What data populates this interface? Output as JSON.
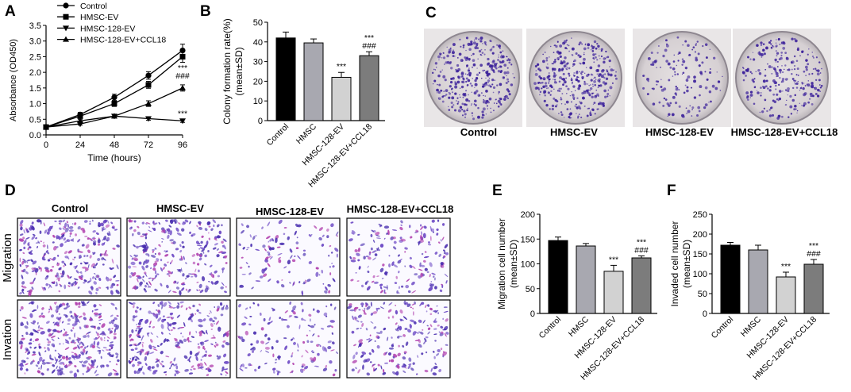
{
  "panel_letters": [
    "A",
    "B",
    "C",
    "D",
    "E",
    "F"
  ],
  "colors": {
    "black": "#000000",
    "gray_dark": "#7c7c7c",
    "gray_mid": "#a8a8b0",
    "gray_light": "#d2d2d2",
    "purple": "#3a1f9a",
    "plate_bg": "#d9d4d6"
  },
  "plate_labels": [
    "Control",
    "HMSC-EV",
    "HMSC-128-EV",
    "HMSC-128-EV+CCL18"
  ],
  "transwell_col_labels": [
    "Control",
    "HMSC-EV",
    "HMSC-128-EV",
    "HMSC-128-EV+CCL18"
  ],
  "transwell_row_labels": [
    "Migration",
    "Invation"
  ],
  "chart_data": [
    {
      "panel": "A",
      "type": "line",
      "xlabel": "Time (hours)",
      "ylabel": "Absorbance (OD450)",
      "x": [
        0,
        24,
        48,
        72,
        96
      ],
      "xlim": [
        0,
        96
      ],
      "ylim": [
        0,
        3.5
      ],
      "yticks": [
        "0.0",
        "0.5",
        "1.0",
        "1.5",
        "2.0",
        "2.5",
        "3.0",
        "3.5"
      ],
      "xticks": [
        "0",
        "24",
        "48",
        "72",
        "96"
      ],
      "grid": false,
      "legend": "top-left",
      "series": [
        {
          "name": "Control",
          "marker": "circle",
          "values": [
            0.25,
            0.65,
            1.2,
            1.9,
            2.7
          ],
          "err": [
            0.05,
            0.07,
            0.1,
            0.12,
            0.2
          ]
        },
        {
          "name": "HMSC-EV",
          "marker": "square",
          "values": [
            0.25,
            0.6,
            1.0,
            1.6,
            2.5
          ],
          "err": [
            0.05,
            0.06,
            0.09,
            0.11,
            0.18
          ]
        },
        {
          "name": "HMSC-128-EV",
          "marker": "triangle-down",
          "values": [
            0.25,
            0.35,
            0.6,
            0.52,
            0.45
          ],
          "err": [
            0.03,
            0.04,
            0.05,
            0.05,
            0.05
          ]
        },
        {
          "name": "HMSC-128-EV+CCL18",
          "marker": "triangle-up",
          "values": [
            0.25,
            0.45,
            0.6,
            1.0,
            1.5
          ],
          "err": [
            0.03,
            0.05,
            0.06,
            0.09,
            0.1
          ]
        }
      ],
      "annotations": [
        {
          "x": 96,
          "y": 1.5,
          "lines": [
            "***",
            "###"
          ]
        },
        {
          "x": 96,
          "y": 0.45,
          "lines": [
            "***"
          ]
        }
      ]
    },
    {
      "panel": "B",
      "type": "bar",
      "ylabel_lines": [
        "Colony formation rate(%)",
        "(mean±SD)"
      ],
      "categories": [
        "Control",
        "HMSC",
        "HMSC-128-EV",
        "HMSC-128-EV+CCL18"
      ],
      "values": [
        42,
        39.5,
        22,
        33
      ],
      "err": [
        3,
        2,
        2.5,
        2
      ],
      "ylim": [
        0,
        50
      ],
      "yticks": [
        "0",
        "10",
        "20",
        "30",
        "40",
        "50"
      ],
      "bar_colors": [
        "#000000",
        "#a8a8b0",
        "#d2d2d2",
        "#7c7c7c"
      ],
      "annotations": [
        null,
        null,
        [
          "***"
        ],
        [
          "***",
          "###"
        ]
      ]
    },
    {
      "panel": "E",
      "type": "bar",
      "ylabel_lines": [
        "Migration cell number",
        "(mean±SD)"
      ],
      "categories": [
        "Control",
        "HMSC",
        "HMSC-128-EV",
        "HMSC-128-EV+CCL18"
      ],
      "values": [
        147,
        136,
        85,
        112
      ],
      "err": [
        7,
        5,
        12,
        4
      ],
      "ylim": [
        0,
        200
      ],
      "yticks": [
        "0",
        "50",
        "100",
        "150",
        "200"
      ],
      "bar_colors": [
        "#000000",
        "#a8a8b0",
        "#d2d2d2",
        "#7c7c7c"
      ],
      "annotations": [
        null,
        null,
        [
          "***"
        ],
        [
          "***",
          "###"
        ]
      ]
    },
    {
      "panel": "F",
      "type": "bar",
      "ylabel_lines": [
        "Invaded cell number",
        "(mean±SD)"
      ],
      "categories": [
        "Control",
        "HMSC",
        "HMSC-128-EV",
        "HMSC-128-EV+CCL18"
      ],
      "values": [
        172,
        160,
        92,
        124
      ],
      "err": [
        7,
        12,
        12,
        12
      ],
      "ylim": [
        0,
        250
      ],
      "yticks": [
        "0",
        "50",
        "100",
        "150",
        "200",
        "250"
      ],
      "bar_colors": [
        "#000000",
        "#a8a8b0",
        "#d2d2d2",
        "#7c7c7c"
      ],
      "annotations": [
        null,
        null,
        [
          "***"
        ],
        [
          "***",
          "###"
        ]
      ]
    }
  ]
}
